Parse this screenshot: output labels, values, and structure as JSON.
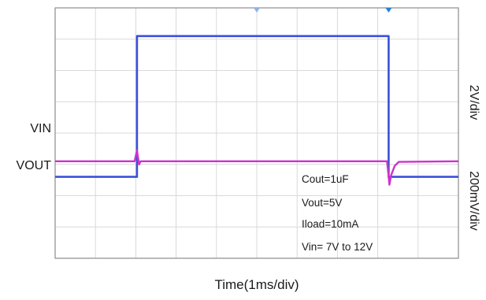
{
  "chart_data": {
    "type": "line",
    "xlabel": "Time(1ms/div)",
    "divisions": {
      "x": 10,
      "y": 8
    },
    "series": [
      {
        "name": "VIN",
        "scale": "2V/div",
        "color": "#3a50d9",
        "x_ms": [
          0,
          2.03,
          2.03,
          8.27,
          8.27,
          10
        ],
        "y_div": [
          2.6,
          2.6,
          7.1,
          7.1,
          2.6,
          2.6
        ]
      },
      {
        "name": "VOUT",
        "scale": "200mV/div",
        "color": "#cc33cc",
        "x_ms": [
          0,
          1.97,
          2.03,
          2.08,
          2.12,
          8.23,
          8.29,
          8.33,
          8.42,
          8.52,
          10
        ],
        "y_div": [
          3.1,
          3.1,
          3.45,
          3.0,
          3.1,
          3.1,
          2.35,
          2.65,
          2.95,
          3.08,
          3.1
        ]
      }
    ],
    "annotations": [
      "Cout=1uF",
      "Vout=5V",
      "Iload=10mA",
      "Vin= 7V to 12V"
    ],
    "grid": true
  }
}
